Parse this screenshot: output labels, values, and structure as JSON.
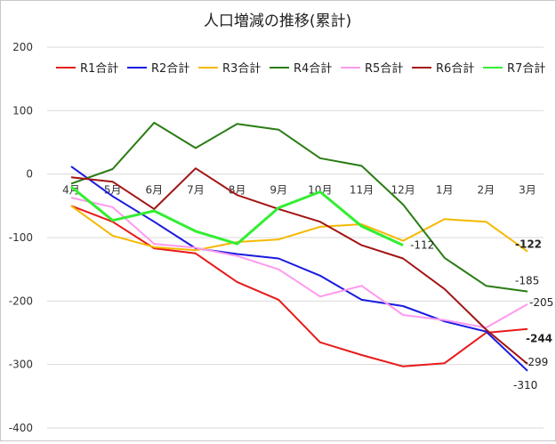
{
  "chart_data": {
    "type": "line",
    "title": "人口増減の推移(累計)",
    "xlabel": "",
    "ylabel": "",
    "categories": [
      "4月",
      "5月",
      "6月",
      "7月",
      "8月",
      "9月",
      "10月",
      "11月",
      "12月",
      "1月",
      "2月",
      "3月"
    ],
    "ylim": [
      -400,
      200
    ],
    "yticks": [
      200,
      100,
      0,
      -100,
      -200,
      -300,
      -400
    ],
    "grid": true,
    "legend": "top",
    "series": [
      {
        "name": "R1合計",
        "color": "#e81a1a",
        "values": [
          -50,
          -75,
          -117,
          -125,
          -170,
          -198,
          -265,
          -285,
          -303,
          -298,
          -250,
          -244
        ],
        "end_label": "-244"
      },
      {
        "name": "R2合計",
        "color": "#1a1ae0",
        "values": [
          12,
          -35,
          -75,
          -117,
          -126,
          -133,
          -160,
          -198,
          -208,
          -232,
          -248,
          -310
        ],
        "end_label": "-310"
      },
      {
        "name": "R3合計",
        "color": "#f5b800",
        "values": [
          -50,
          -97,
          -115,
          -120,
          -107,
          -103,
          -83,
          -79,
          -105,
          -71,
          -75,
          -122
        ],
        "end_label": "-122"
      },
      {
        "name": "R4合計",
        "color": "#2a7d14",
        "values": [
          -15,
          8,
          81,
          41,
          79,
          70,
          25,
          13,
          -48,
          -132,
          -176,
          -185
        ],
        "end_label": "-185"
      },
      {
        "name": "R5合計",
        "color": "#ff99ee",
        "values": [
          -37,
          -52,
          -110,
          -116,
          -129,
          -150,
          -193,
          -176,
          -222,
          -230,
          -242,
          -205
        ],
        "end_label": "-205"
      },
      {
        "name": "R6合計",
        "color": "#a31414",
        "values": [
          -5,
          -12,
          -55,
          9,
          -33,
          -55,
          -75,
          -112,
          -133,
          -181,
          -245,
          -299
        ],
        "end_label": "-299"
      },
      {
        "name": "R7合計",
        "color": "#33ee33",
        "values": [
          -20,
          -73,
          -58,
          -90,
          -110,
          -53,
          -28,
          -82,
          -112,
          null,
          null,
          null
        ],
        "end_label": "-112"
      }
    ]
  }
}
